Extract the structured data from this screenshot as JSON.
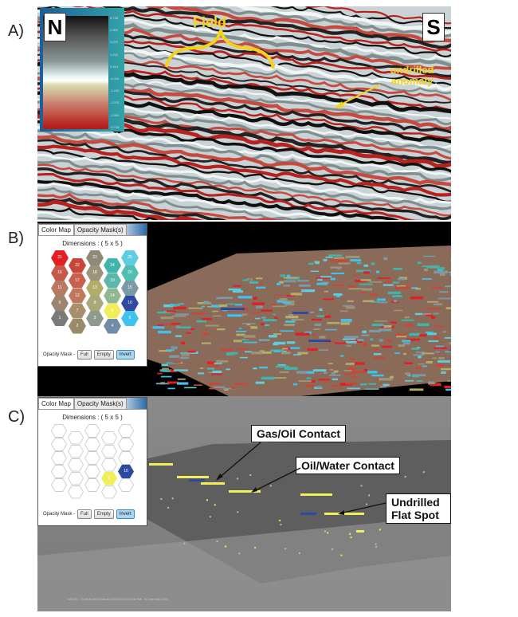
{
  "panels": [
    {
      "label": "A)",
      "north": "N",
      "south": "S",
      "field_label": "Field",
      "anomaly_label": "undrilled anomaly",
      "colorbar_ticks": [
        "3.728",
        "2.900",
        "2.070",
        "1.242",
        "0.414",
        "-0.414",
        "-1.242",
        "-2.070",
        "-2.900",
        "-3.728"
      ]
    },
    {
      "label": "B)"
    },
    {
      "label": "C)",
      "callouts": [
        "Gas/Oil Contact",
        "Oil/Water Contact",
        "Undrilled Flat Spot"
      ],
      "status_text": "WC001 - SOM 8-5X5 Default-1/22/2015 3:13:10 PM - In-Line 9411.000"
    }
  ],
  "dialog": {
    "tabs": [
      "Color Map",
      "Opacity Mask(s)"
    ],
    "dimensions": "Dimensions :  ( 5 x 5 )",
    "opacity_label": "Opacity Mask -",
    "buttons": [
      "Full",
      "Empty",
      "Invert"
    ],
    "neurons": [
      {
        "n": "21",
        "color": "#e31e24"
      },
      {
        "n": "22",
        "color": "#c8473a"
      },
      {
        "n": "23",
        "color": "#8f8a78"
      },
      {
        "n": "24",
        "color": "#3fb5ad"
      },
      {
        "n": "25",
        "color": "#5fcde0"
      },
      {
        "n": "16",
        "color": "#c65a4a"
      },
      {
        "n": "17",
        "color": "#c9604c"
      },
      {
        "n": "18",
        "color": "#9c9478"
      },
      {
        "n": "19",
        "color": "#5ab8a8"
      },
      {
        "n": "20",
        "color": "#4ebfb0"
      },
      {
        "n": "11",
        "color": "#b77a60"
      },
      {
        "n": "12",
        "color": "#c0785c"
      },
      {
        "n": "13",
        "color": "#b3ad6a"
      },
      {
        "n": "14",
        "color": "#8fb890"
      },
      {
        "n": "15",
        "color": "#7a9aa8"
      },
      {
        "n": "6",
        "color": "#9a8670"
      },
      {
        "n": "7",
        "color": "#a88e6c"
      },
      {
        "n": "8",
        "color": "#a8a878"
      },
      {
        "n": "9",
        "color": "#f2ee5a"
      },
      {
        "n": "10",
        "color": "#2d4aa0"
      },
      {
        "n": "1",
        "color": "#7a7a78"
      },
      {
        "n": "2",
        "color": "#9a8a6a"
      },
      {
        "n": "3",
        "color": "#8e9a8c"
      },
      {
        "n": "4",
        "color": "#6f8ca8"
      },
      {
        "n": "5",
        "color": "#3fc2ee"
      }
    ],
    "mask_visible": [
      "9",
      "10"
    ]
  },
  "colors": {
    "annotation": "#f3d21b",
    "seismic_red": "#b8221e",
    "seismic_black": "#111111"
  }
}
